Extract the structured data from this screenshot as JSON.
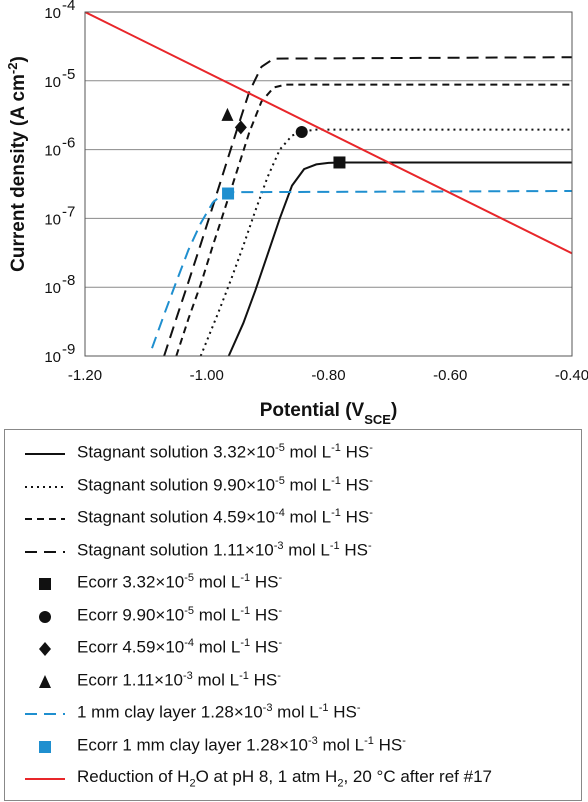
{
  "chart_data": {
    "type": "line",
    "xlabel": "Potential (V",
    "xlabel_sub": "SCE",
    "xlabel_end": ")",
    "ylabel": "Current density (A cm",
    "ylabel_sup": "-2",
    "ylabel_end": ")",
    "xlim": [
      -1.2,
      -0.4
    ],
    "ylim_log10": [
      -9,
      -4
    ],
    "y_scale": "log",
    "grid": "horizontal",
    "legend_placement": "below",
    "x_ticks": [
      -1.2,
      -1.0,
      -0.8,
      -0.6,
      -0.4
    ],
    "x_tick_labels": [
      "-1.20",
      "-1.00",
      "-0.80",
      "-0.60",
      "-0.40"
    ],
    "y_ticks": [
      -9,
      -8,
      -7,
      -6,
      -5,
      -4
    ],
    "y_tick_labels": [
      "10",
      "10",
      "10",
      "10",
      "10",
      "10"
    ],
    "y_tick_exponents": [
      "-9",
      "-8",
      "-7",
      "-6",
      "-5",
      "-4"
    ],
    "series": [
      {
        "name": "Stagnant solution 3.32×10",
        "exp": "-5",
        "unit": " mol L",
        "unit_exp": "-1",
        "species": " HS",
        "species_exp": "-",
        "kind": "line",
        "color": "#111111",
        "dash": "",
        "x": [
          -0.964,
          -0.94,
          -0.92,
          -0.9,
          -0.88,
          -0.86,
          -0.84,
          -0.82,
          -0.8,
          -0.78,
          -0.4
        ],
        "y": [
          1e-09,
          3e-09,
          9e-09,
          3e-08,
          1e-07,
          3e-07,
          5.2e-07,
          6.1e-07,
          6.4e-07,
          6.5e-07,
          6.5e-07
        ]
      },
      {
        "name": "Stagnant solution 9.90×10",
        "exp": "-5",
        "unit": " mol L",
        "unit_exp": "-1",
        "species": " HS",
        "species_exp": "-",
        "kind": "line",
        "color": "#111111",
        "dash": "2,4",
        "x": [
          -1.01,
          -0.98,
          -0.96,
          -0.94,
          -0.92,
          -0.9,
          -0.88,
          -0.86,
          -0.84,
          -0.82,
          -0.4
        ],
        "y": [
          1e-09,
          4.5e-09,
          1.3e-08,
          4e-08,
          1.3e-07,
          4e-07,
          1e-06,
          1.6e-06,
          1.85e-06,
          1.95e-06,
          1.95e-06
        ]
      },
      {
        "name": "Stagnant solution 4.59×10",
        "exp": "-4",
        "unit": " mol L",
        "unit_exp": "-1",
        "species": " HS",
        "species_exp": "-",
        "kind": "line",
        "color": "#111111",
        "dash": "7,5",
        "x": [
          -1.05,
          -1.03,
          -1.01,
          -0.99,
          -0.97,
          -0.95,
          -0.93,
          -0.91,
          -0.89,
          -0.87,
          -0.4
        ],
        "y": [
          1e-09,
          3.5e-09,
          1.1e-08,
          4e-08,
          1.4e-07,
          5e-07,
          1.8e-06,
          5e-06,
          8e-06,
          8.8e-06,
          8.8e-06
        ]
      },
      {
        "name": "Stagnant solution 1.11×10",
        "exp": "-3",
        "unit": " mol L",
        "unit_exp": "-1",
        "species": " HS",
        "species_exp": "-",
        "kind": "line",
        "color": "#111111",
        "dash": "12,7",
        "x": [
          -1.07,
          -1.05,
          -1.03,
          -1.01,
          -0.99,
          -0.97,
          -0.95,
          -0.93,
          -0.91,
          -0.89,
          -0.4
        ],
        "y": [
          1e-09,
          3.5e-09,
          1.2e-08,
          4.2e-08,
          1.5e-07,
          5.5e-07,
          2e-06,
          7e-06,
          1.6e-05,
          2.1e-05,
          2.2e-05
        ]
      },
      {
        "name": "Ecorr 3.32×10",
        "exp": "-5",
        "unit": " mol L",
        "unit_exp": "-1",
        "species": " HS",
        "species_exp": "-",
        "kind": "marker",
        "marker": "square",
        "color": "#111111",
        "x": [
          -0.782
        ],
        "y": [
          6.5e-07
        ]
      },
      {
        "name": "Ecorr 9.90×10",
        "exp": "-5",
        "unit": " mol L",
        "unit_exp": "-1",
        "species": " HS",
        "species_exp": "-",
        "kind": "marker",
        "marker": "circle",
        "color": "#111111",
        "x": [
          -0.844
        ],
        "y": [
          1.8e-06
        ]
      },
      {
        "name": "Ecorr 4.59×10",
        "exp": "-4",
        "unit": " mol L",
        "unit_exp": "-1",
        "species": " HS",
        "species_exp": "-",
        "kind": "marker",
        "marker": "diamond",
        "color": "#111111",
        "x": [
          -0.944
        ],
        "y": [
          2.1e-06
        ]
      },
      {
        "name": "Ecorr 1.11×10",
        "exp": "-3",
        "unit": " mol L",
        "unit_exp": "-1",
        "species": " HS",
        "species_exp": "-",
        "kind": "marker",
        "marker": "triangle",
        "color": "#111111",
        "x": [
          -0.966
        ],
        "y": [
          3.2e-06
        ]
      },
      {
        "name": "1 mm clay layer 1.28×10",
        "exp": "-3",
        "unit": " mol L",
        "unit_exp": "-1",
        "species": " HS",
        "species_exp": "-",
        "kind": "line",
        "color": "#1f8fcf",
        "dash": "12,7",
        "x": [
          -1.09,
          -1.07,
          -1.05,
          -1.03,
          -1.01,
          -0.99,
          -0.975,
          -0.965,
          -0.4
        ],
        "y": [
          1.3e-09,
          4e-09,
          1.2e-08,
          3.5e-08,
          8.5e-08,
          1.7e-07,
          2.2e-07,
          2.4e-07,
          2.5e-07
        ]
      },
      {
        "name": "Ecorr 1 mm clay layer 1.28×10",
        "exp": "-3",
        "unit": " mol L",
        "unit_exp": "-1",
        "species": " HS",
        "species_exp": "-",
        "kind": "marker",
        "marker": "square",
        "color": "#1f8fcf",
        "x": [
          -0.965
        ],
        "y": [
          2.3e-07
        ]
      },
      {
        "name": "Reduction of H",
        "sub": "2",
        "name_rest": "O at pH 8, 1 atm H",
        "sub2": "2",
        "name_end": ", 20 °C after ref #17",
        "kind": "line",
        "color": "#e8262a",
        "dash": "",
        "x": [
          -1.2,
          -0.4
        ],
        "y": [
          0.0001,
          3.1e-08
        ]
      }
    ]
  }
}
